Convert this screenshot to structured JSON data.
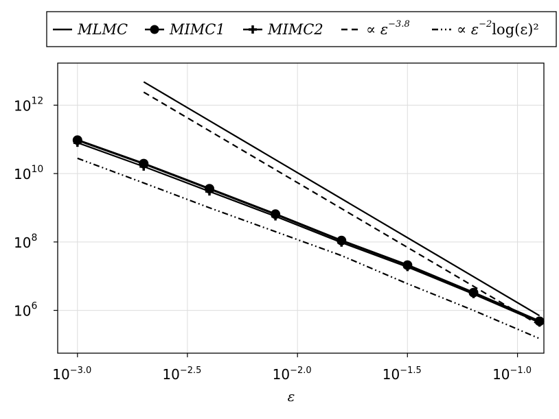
{
  "chart_data": {
    "type": "line",
    "xlabel": "ε",
    "ylabel": "",
    "x_scale": "log10",
    "y_scale": "log10",
    "xlim": [
      0.000813,
      0.1318
    ],
    "ylim": [
      56000,
      17000000000000.0
    ],
    "grid": true,
    "legend_position": "top",
    "x_ticks": [
      {
        "value": 0.001,
        "base": "10",
        "exp": "−3.0"
      },
      {
        "value": 0.00316,
        "base": "10",
        "exp": "−2.5"
      },
      {
        "value": 0.01,
        "base": "10",
        "exp": "−2.0"
      },
      {
        "value": 0.0316,
        "base": "10",
        "exp": "−1.5"
      },
      {
        "value": 0.1,
        "base": "10",
        "exp": "−1.0"
      }
    ],
    "y_ticks": [
      {
        "value": 1000000,
        "base": "10",
        "exp": "6"
      },
      {
        "value": 100000000,
        "base": "10",
        "exp": "8"
      },
      {
        "value": 10000000000,
        "base": "10",
        "exp": "10"
      },
      {
        "value": 1000000000000,
        "base": "10",
        "exp": "12"
      }
    ],
    "series": [
      {
        "name": "MLMC",
        "style": "solid",
        "marker": "none",
        "width": 2.2,
        "x": [
          0.002,
          0.1259
        ],
        "y": [
          4800000000000.0,
          700000
        ]
      },
      {
        "name": "MIMC1",
        "style": "solid",
        "marker": "circle",
        "width": 3.2,
        "x": [
          0.001,
          0.002,
          0.00398,
          0.00794,
          0.01585,
          0.03162,
          0.0631,
          0.1259
        ],
        "y": [
          95000000000.0,
          19500000000.0,
          3600000000.0,
          650000000.0,
          110000000.0,
          21000000.0,
          3300000.0,
          480000
        ]
      },
      {
        "name": "MIMC2",
        "style": "solid",
        "marker": "cross",
        "width": 2.2,
        "x": [
          0.001,
          0.002,
          0.00398,
          0.00794,
          0.01585,
          0.03162,
          0.0631,
          0.1259
        ],
        "y": [
          80000000000.0,
          16000000000.0,
          3000000000.0,
          560000000.0,
          96000000.0,
          18500000.0,
          3000000.0,
          440000
        ]
      },
      {
        "name": "∝ ε^−3.8",
        "style": "dashed",
        "marker": "none",
        "width": 2.2,
        "x": [
          0.002,
          0.1259
        ],
        "y": [
          2400000000000.0,
          370000
        ]
      },
      {
        "name": "∝ ε^−2 log(ε)^2",
        "style": "dashdotdot",
        "marker": "none",
        "width": 2.2,
        "x": [
          0.001,
          0.002,
          0.00398,
          0.00794,
          0.01585,
          0.03162,
          0.0631,
          0.1259
        ],
        "y": [
          28000000000.0,
          5300000000.0,
          1000000000.0,
          200000000.0,
          40000000.0,
          6000000.0,
          1000000.0,
          150000
        ]
      }
    ],
    "legend": [
      {
        "label": "MLMC",
        "style": "solid",
        "marker": "none",
        "sup": ""
      },
      {
        "label": "MIMC1",
        "style": "solid",
        "marker": "circle",
        "sup": ""
      },
      {
        "label": "MIMC2",
        "style": "solid",
        "marker": "cross",
        "sup": ""
      },
      {
        "label": "∝ ε",
        "style": "dashed",
        "marker": "none",
        "sup": "−3.8"
      },
      {
        "label": "∝ ε",
        "style": "dashdotdot",
        "marker": "none",
        "sup": "−2",
        "tail": "log(ε)²"
      }
    ]
  }
}
